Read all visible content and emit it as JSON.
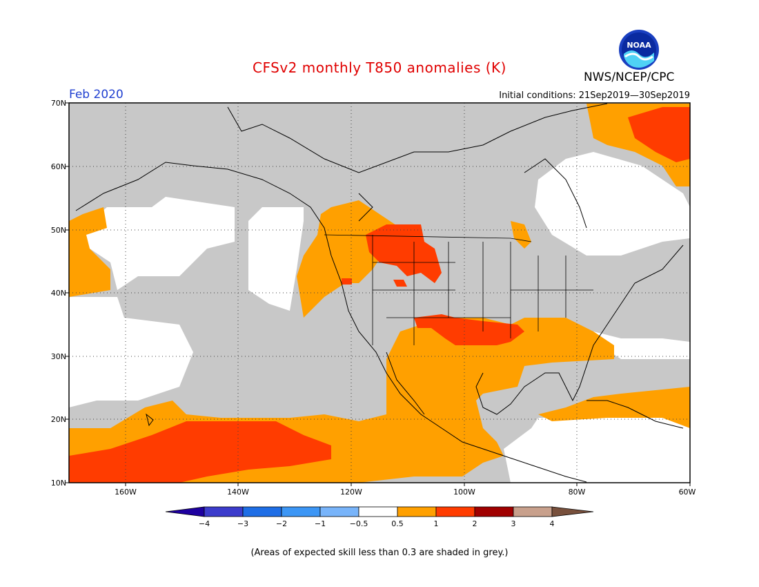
{
  "title": "CFSv2 monthly T850 anomalies (K)",
  "month": "Feb 2020",
  "initial_conditions": "Initial conditions: 21Sep2019—30Sep2019",
  "agency": "NWS/NCEP/CPC",
  "logo": {
    "icon": "noaa-logo-icon",
    "text": "NOAA"
  },
  "footnote": "(Areas of expected skill less than 0.3 are shaded in grey.)",
  "map": {
    "lat_labels": [
      "70N",
      "60N",
      "50N",
      "40N",
      "30N",
      "20N",
      "10N"
    ],
    "lon_labels": [
      "160W",
      "140W",
      "120W",
      "100W",
      "80W",
      "60W"
    ],
    "lon_range": [
      -170,
      -60
    ],
    "lat_range": [
      10,
      70
    ],
    "colors": {
      "skill_grey": "#c8c8c8",
      "near_zero": "#ffffff",
      "plus_0_5_to_1": "#ffa000",
      "plus_1_to_2": "#ff3c00"
    }
  },
  "colorbar": {
    "labels": [
      "−4",
      "−3",
      "−2",
      "−1",
      "−0.5",
      "0.5",
      "1",
      "2",
      "3",
      "4"
    ],
    "colors": [
      "#1e00a0",
      "#3c3ccc",
      "#1e6ee6",
      "#3c96f5",
      "#78b4fa",
      "#ffffff",
      "#ffa000",
      "#ff3c00",
      "#a00000",
      "#c8a08c",
      "#78503c"
    ]
  }
}
